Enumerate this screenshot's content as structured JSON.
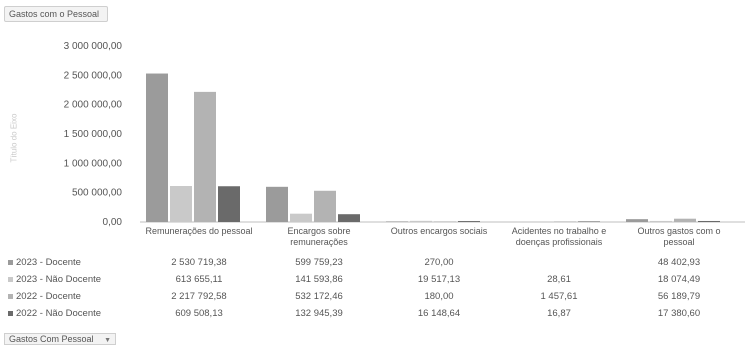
{
  "header": {
    "field_button": "Gastos com o Pessoal"
  },
  "footer": {
    "field_button": "Gastos Com Pessoal"
  },
  "colors": {
    "s2023_docente": "#9b9b9b",
    "s2023_nao_docente": "#c9c9c9",
    "s2022_docente": "#b3b3b3",
    "s2022_nao_docente": "#6a6a6a"
  },
  "chart_data": {
    "type": "bar",
    "ylabel": "Título do Eixo",
    "ylim": [
      0,
      3000000
    ],
    "y_ticks": [
      "3 000 000,00",
      "2 500 000,00",
      "2 000 000,00",
      "1 500 000,00",
      "1 000 000,00",
      "500 000,00",
      "0,00"
    ],
    "categories": [
      "Remunerações do pessoal",
      "Encargos sobre remunerações",
      "Outros encargos sociais",
      "Acidentes no trabalho e doenças profissionais",
      "Outros gastos com o pessoal"
    ],
    "series": [
      {
        "name": "2023 - Docente",
        "values": [
          2530719.38,
          599759.23,
          270,
          null,
          48402.93
        ],
        "labels": [
          "2 530 719,38",
          "599 759,23",
          "270,00",
          "",
          "48 402,93"
        ]
      },
      {
        "name": "2023 - Não Docente",
        "values": [
          613655.11,
          141593.86,
          19517.13,
          28.61,
          18074.49
        ],
        "labels": [
          "613 655,11",
          "141 593,86",
          "19 517,13",
          "28,61",
          "18 074,49"
        ]
      },
      {
        "name": "2022 - Docente",
        "values": [
          2217792.58,
          532172.46,
          180,
          1457.61,
          56189.79
        ],
        "labels": [
          "2 217 792,58",
          "532 172,46",
          "180,00",
          "1 457,61",
          "56 189,79"
        ]
      },
      {
        "name": "2022 - Não Docente",
        "values": [
          609508.13,
          132945.39,
          16148.64,
          16.87,
          17380.6
        ],
        "labels": [
          "609 508,13",
          "132 945,39",
          "16 148,64",
          "16,87",
          "17 380,60"
        ]
      }
    ]
  }
}
